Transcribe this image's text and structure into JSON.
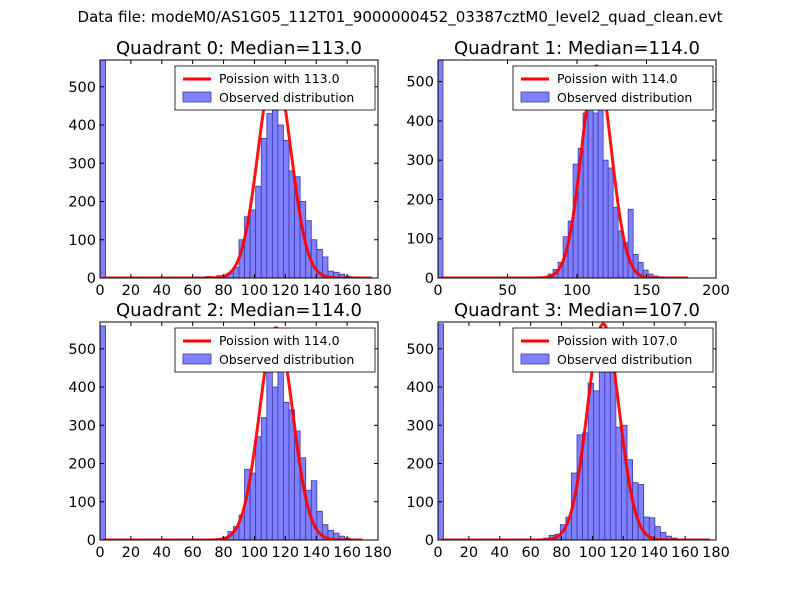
{
  "suptitle": "Data file: modeM0/AS1G05_112T01_9000000452_03387cztM0_level2_quad_clean.evt",
  "colors": {
    "bar_fill": "#8080ff",
    "bar_edge": "#3a3aa8",
    "line": "#ff0000",
    "axis": "#000000"
  },
  "chart_data": [
    {
      "type": "bar",
      "title": "Quadrant 0: Median=113.0",
      "legend": {
        "position": "top-right",
        "line_label": "Poission with 113.0",
        "bar_label": "Observed distribution"
      },
      "xlim": [
        0,
        180
      ],
      "ylim": [
        0,
        570
      ],
      "xticks": [
        0,
        20,
        40,
        60,
        80,
        100,
        120,
        140,
        160,
        180
      ],
      "yticks": [
        0,
        100,
        200,
        300,
        400,
        500
      ],
      "median": 113.0,
      "bin_width": 3.6,
      "bins": [
        [
          0,
          575
        ],
        [
          61.2,
          2
        ],
        [
          64.8,
          1
        ],
        [
          68.4,
          4
        ],
        [
          72,
          2
        ],
        [
          75.6,
          6
        ],
        [
          79.2,
          7
        ],
        [
          82.8,
          13
        ],
        [
          86.4,
          28
        ],
        [
          90,
          100
        ],
        [
          93.6,
          160
        ],
        [
          97.2,
          178
        ],
        [
          100.8,
          240
        ],
        [
          104.4,
          365
        ],
        [
          108,
          430
        ],
        [
          111.6,
          445
        ],
        [
          115.2,
          400
        ],
        [
          118.8,
          360
        ],
        [
          122.4,
          280
        ],
        [
          126,
          265
        ],
        [
          129.6,
          200
        ],
        [
          133.2,
          150
        ],
        [
          136.8,
          100
        ],
        [
          140.4,
          75
        ],
        [
          144,
          55
        ],
        [
          147.6,
          18
        ],
        [
          151.2,
          15
        ],
        [
          154.8,
          10
        ],
        [
          158.4,
          5
        ],
        [
          162,
          3
        ],
        [
          165.6,
          2
        ]
      ],
      "poisson": {
        "peak": 550,
        "sigma": 10.6,
        "x_start": 2,
        "x_end": 176
      }
    },
    {
      "type": "bar",
      "title": "Quadrant 1: Median=114.0",
      "legend": {
        "position": "top-right",
        "line_label": "Poission with 114.0",
        "bar_label": "Observed distribution"
      },
      "xlim": [
        0,
        200
      ],
      "ylim": [
        0,
        555
      ],
      "xticks": [
        0,
        50,
        100,
        150,
        200
      ],
      "yticks": [
        0,
        100,
        200,
        300,
        400,
        500
      ],
      "median": 114.0,
      "bin_width": 3.6,
      "bins": [
        [
          0,
          560
        ],
        [
          72,
          2
        ],
        [
          75.6,
          3
        ],
        [
          79.2,
          10
        ],
        [
          82.8,
          22
        ],
        [
          86.4,
          40
        ],
        [
          90,
          105
        ],
        [
          93.6,
          145
        ],
        [
          97.2,
          290
        ],
        [
          100.8,
          330
        ],
        [
          104.4,
          420
        ],
        [
          108,
          520
        ],
        [
          111.6,
          420
        ],
        [
          115.2,
          440
        ],
        [
          118.8,
          300
        ],
        [
          122.4,
          280
        ],
        [
          126,
          180
        ],
        [
          129.6,
          120
        ],
        [
          133.2,
          90
        ],
        [
          136.8,
          175
        ],
        [
          140.4,
          60
        ],
        [
          144,
          40
        ],
        [
          147.6,
          20
        ],
        [
          151.2,
          10
        ],
        [
          154.8,
          5
        ],
        [
          158.4,
          3
        ],
        [
          162,
          1
        ]
      ],
      "poisson": {
        "peak": 540,
        "sigma": 10.7,
        "x_start": 2,
        "x_end": 180
      }
    },
    {
      "type": "bar",
      "title": "Quadrant 2: Median=114.0",
      "legend": {
        "position": "top-right",
        "line_label": "Poission with 114.0",
        "bar_label": "Observed distribution"
      },
      "xlim": [
        0,
        180
      ],
      "ylim": [
        0,
        570
      ],
      "xticks": [
        0,
        20,
        40,
        60,
        80,
        100,
        120,
        140,
        160,
        180
      ],
      "yticks": [
        0,
        100,
        200,
        300,
        400,
        500
      ],
      "median": 114.0,
      "bin_width": 3.6,
      "bins": [
        [
          0,
          560
        ],
        [
          72,
          2
        ],
        [
          75.6,
          3
        ],
        [
          79.2,
          7
        ],
        [
          82.8,
          22
        ],
        [
          86.4,
          35
        ],
        [
          90,
          65
        ],
        [
          93.6,
          185
        ],
        [
          97.2,
          175
        ],
        [
          100.8,
          270
        ],
        [
          104.4,
          320
        ],
        [
          108,
          450
        ],
        [
          111.6,
          400
        ],
        [
          115.2,
          470
        ],
        [
          118.8,
          360
        ],
        [
          122.4,
          340
        ],
        [
          126,
          285
        ],
        [
          129.6,
          215
        ],
        [
          133.2,
          130
        ],
        [
          136.8,
          155
        ],
        [
          140.4,
          75
        ],
        [
          144,
          40
        ],
        [
          147.6,
          25
        ],
        [
          151.2,
          18
        ],
        [
          154.8,
          10
        ],
        [
          158.4,
          5
        ],
        [
          162,
          2
        ]
      ],
      "poisson": {
        "peak": 555,
        "sigma": 10.7,
        "x_start": 2,
        "x_end": 170
      }
    },
    {
      "type": "bar",
      "title": "Quadrant 3: Median=107.0",
      "legend": {
        "position": "top-right",
        "line_label": "Poission with 107.0",
        "bar_label": "Observed distribution"
      },
      "xlim": [
        0,
        180
      ],
      "ylim": [
        0,
        570
      ],
      "xticks": [
        0,
        20,
        40,
        60,
        80,
        100,
        120,
        140,
        160,
        180
      ],
      "yticks": [
        0,
        100,
        200,
        300,
        400,
        500
      ],
      "median": 107.0,
      "bin_width": 3.6,
      "bins": [
        [
          0,
          565
        ],
        [
          64.8,
          2
        ],
        [
          68.4,
          5
        ],
        [
          72,
          12
        ],
        [
          75.6,
          15
        ],
        [
          79.2,
          40
        ],
        [
          82.8,
          60
        ],
        [
          86.4,
          175
        ],
        [
          90,
          275
        ],
        [
          93.6,
          280
        ],
        [
          97.2,
          410
        ],
        [
          100.8,
          390
        ],
        [
          104.4,
          520
        ],
        [
          108,
          470
        ],
        [
          111.6,
          460
        ],
        [
          115.2,
          295
        ],
        [
          118.8,
          300
        ],
        [
          122.4,
          210
        ],
        [
          126,
          150
        ],
        [
          129.6,
          145
        ],
        [
          133.2,
          60
        ],
        [
          136.8,
          58
        ],
        [
          140.4,
          35
        ],
        [
          144,
          20
        ],
        [
          147.6,
          10
        ],
        [
          151.2,
          5
        ],
        [
          154.8,
          2
        ]
      ],
      "poisson": {
        "peak": 565,
        "sigma": 10.3,
        "x_start": 2,
        "x_end": 176
      }
    }
  ]
}
